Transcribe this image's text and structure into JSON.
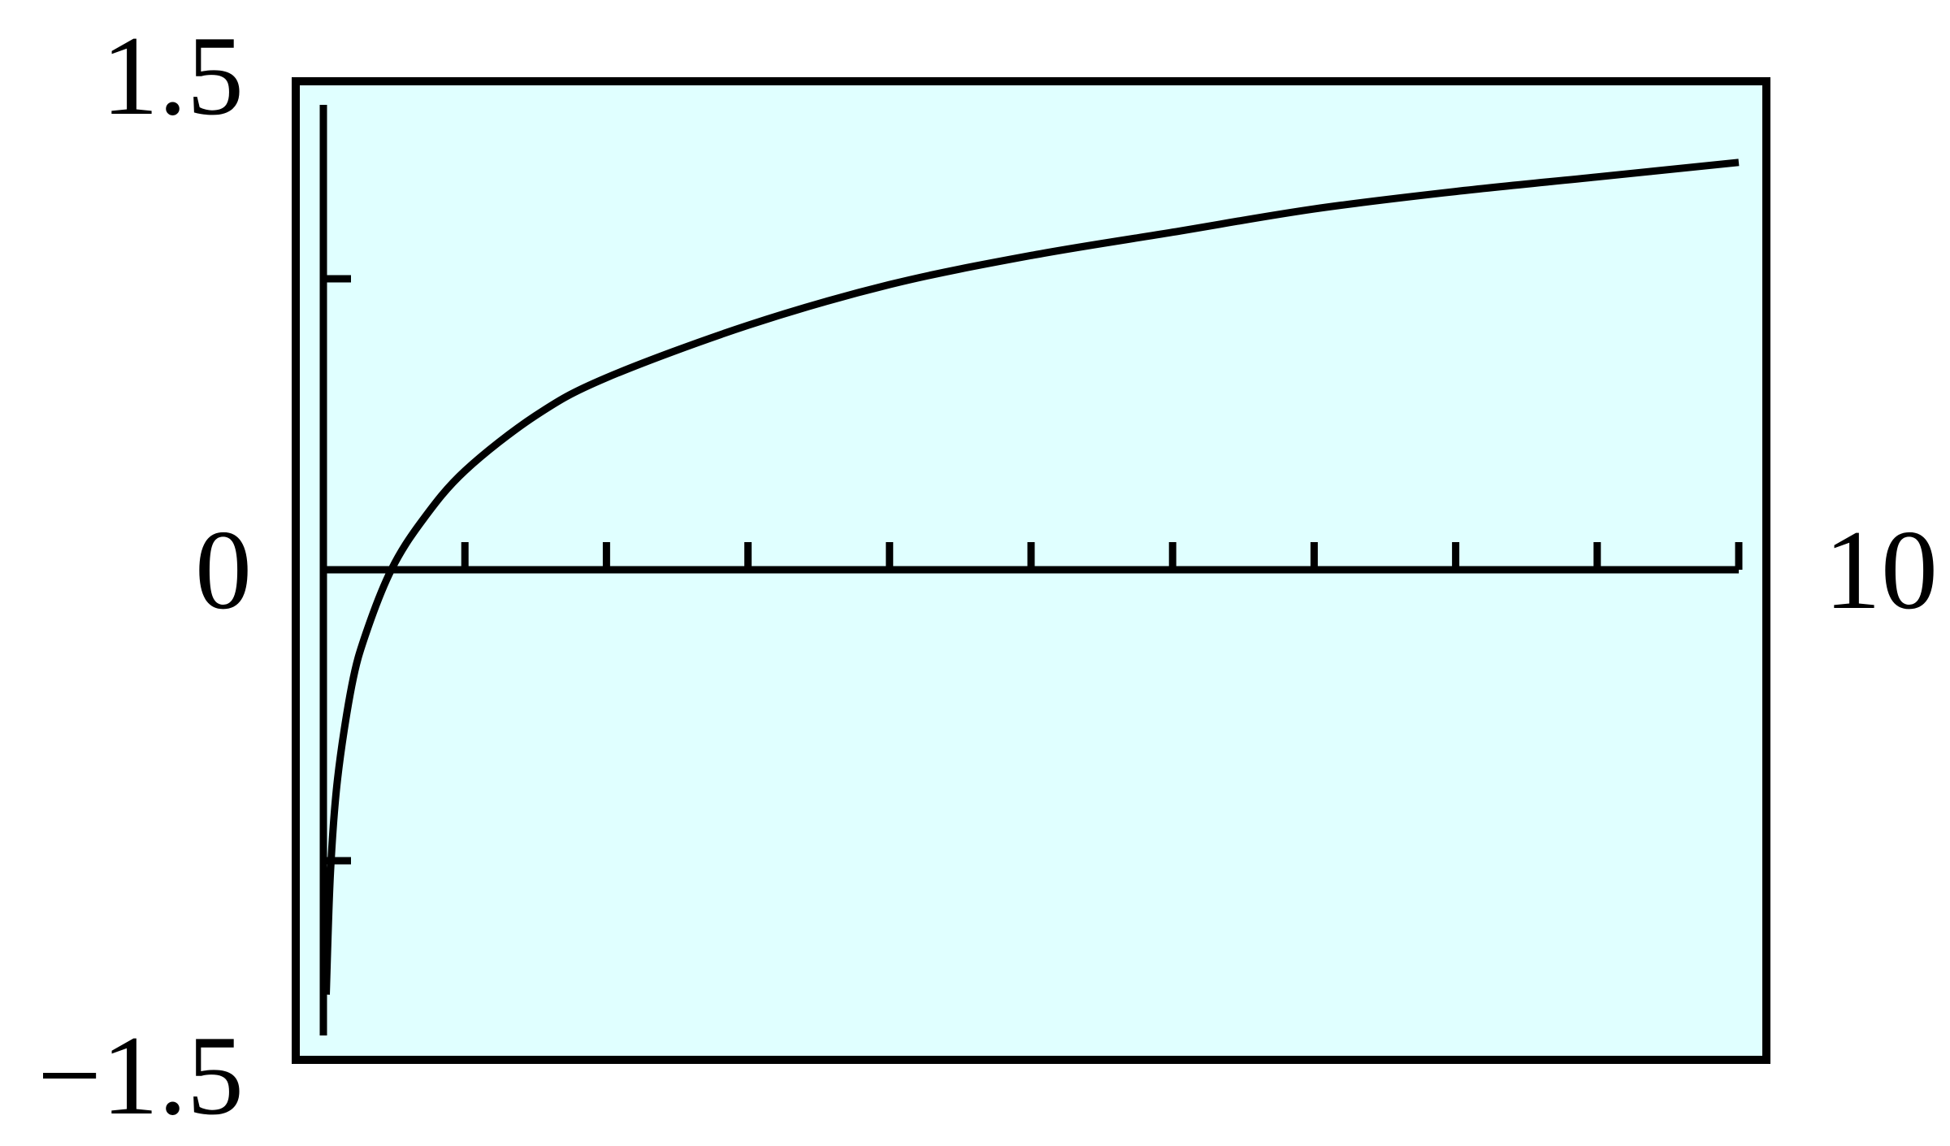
{
  "chart_data": {
    "type": "line",
    "title": "",
    "xlabel": "",
    "ylabel": "",
    "xlim": [
      0,
      10
    ],
    "ylim": [
      -1.5,
      1.5
    ],
    "x_tick_step": 1,
    "y_ticks": [
      -1,
      1
    ],
    "corner_labels": {
      "y_max": "1.5",
      "y_min": "−1.5",
      "x_zero": "0",
      "x_max": "10"
    },
    "grid": false,
    "background_color": "#e0ffff",
    "line_color": "#000000",
    "series": [
      {
        "x": [
          0.02,
          0.05,
          0.1,
          0.2,
          0.3,
          0.48,
          0.7,
          1,
          1.5,
          2,
          3,
          4,
          5,
          6,
          7,
          8,
          9,
          10
        ],
        "y": [
          -1.46,
          -1.04,
          -0.72,
          -0.4,
          -0.22,
          0.0,
          0.17,
          0.34,
          0.53,
          0.66,
          0.84,
          0.98,
          1.08,
          1.16,
          1.24,
          1.3,
          1.35,
          1.4
        ]
      }
    ]
  }
}
